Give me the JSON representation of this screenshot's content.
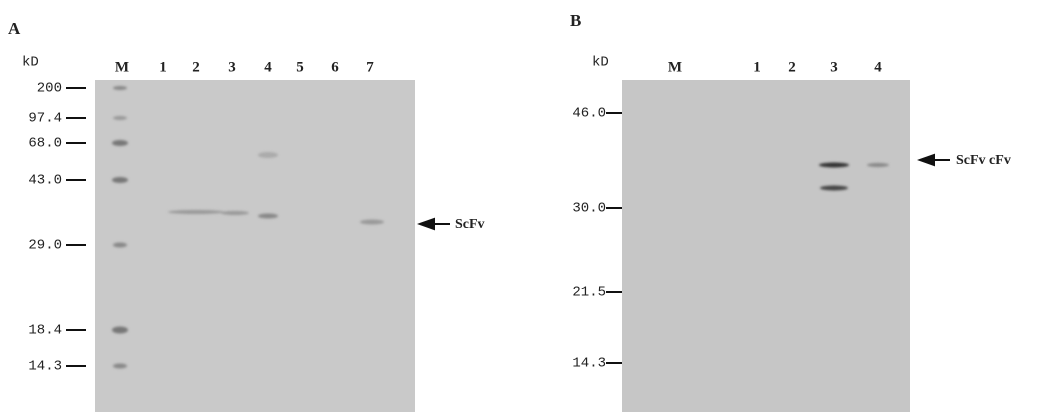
{
  "panels": [
    {
      "label": "A",
      "unit": "kD",
      "lanes": [
        "M",
        "1",
        "2",
        "3",
        "4",
        "5",
        "6",
        "7"
      ],
      "markers": [
        "200",
        "97.4",
        "68.0",
        "43.0",
        "29.0",
        "18.4",
        "14.3"
      ],
      "annotation": "ScFv"
    },
    {
      "label": "B",
      "unit": "kD",
      "lanes": [
        "M",
        "1",
        "2",
        "3",
        "4"
      ],
      "markers": [
        "46.0",
        "30.0",
        "21.5",
        "14.3"
      ],
      "annotation": "ScFv cFv"
    }
  ]
}
